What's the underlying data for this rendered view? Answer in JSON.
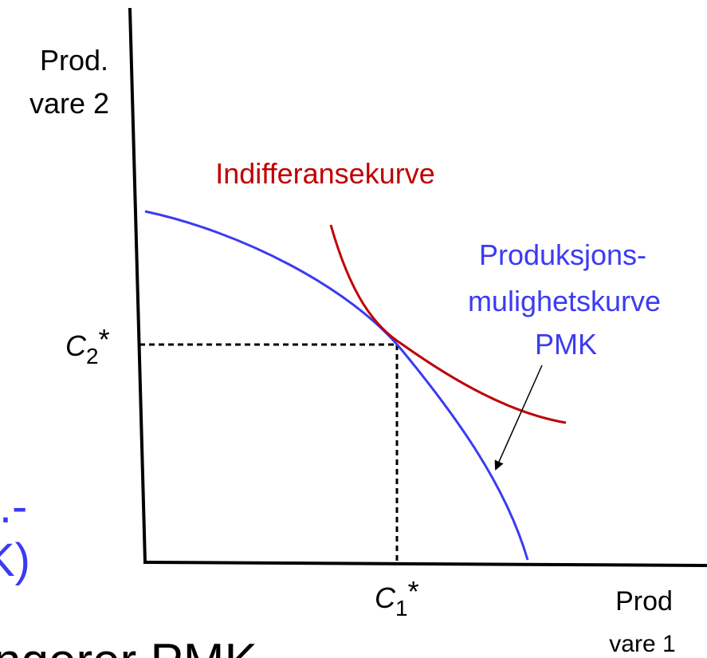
{
  "y_axis_label": [
    "Prod.",
    "vare 2"
  ],
  "x_axis_label": [
    "Prod",
    "vare 1"
  ],
  "indifference_curve_label": "Indifferansekurve",
  "ppf_label": [
    "Produksjons-",
    "mulighetskurve",
    "PMK"
  ],
  "c2_label": {
    "base": "C",
    "sub": "2",
    "sup": "*"
  },
  "c1_label": {
    "base": "C",
    "sub": "1",
    "sup": "*"
  },
  "clipped_texts": [
    "l.-",
    "K)",
    "ngerer PMK"
  ]
}
